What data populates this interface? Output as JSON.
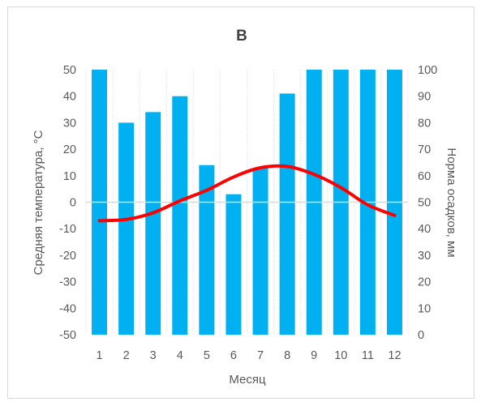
{
  "chart_data": {
    "type": "bar",
    "title": "B",
    "xlabel": "Месяц",
    "categories": [
      "1",
      "2",
      "3",
      "4",
      "5",
      "6",
      "7",
      "8",
      "9",
      "10",
      "11",
      "12"
    ],
    "y_left": {
      "label": "Средняя температура, °C",
      "ylim": [
        -50,
        50
      ],
      "ticks": [
        "50",
        "40",
        "30",
        "20",
        "10",
        "0",
        "-10",
        "-20",
        "-30",
        "-40",
        "-50"
      ]
    },
    "y_right": {
      "label": "Норма осадков, мм",
      "ylim": [
        0,
        100
      ],
      "ticks": [
        "100",
        "90",
        "80",
        "70",
        "60",
        "50",
        "40",
        "30",
        "20",
        "10",
        "0"
      ]
    },
    "series": [
      {
        "type": "bar",
        "axis": "left",
        "color": "#00b0f0",
        "values": [
          50,
          30,
          34,
          40,
          14,
          3,
          13,
          41,
          50,
          50,
          50,
          50
        ]
      },
      {
        "type": "line",
        "axis": "right",
        "color": "#ff0000",
        "values": [
          43,
          43.5,
          46,
          50.5,
          54.5,
          59.5,
          63,
          63.5,
          60.5,
          55.5,
          49,
          45
        ]
      }
    ],
    "grid": "vertical-dotted",
    "legend": "none"
  }
}
